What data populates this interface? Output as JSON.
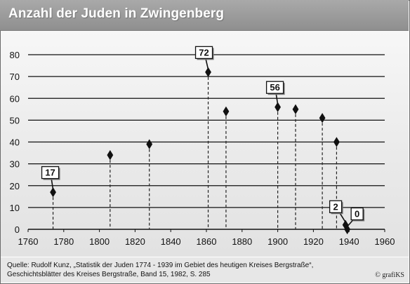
{
  "title": "Anzahl der Juden in Zwingenberg",
  "source_line1": "Quelle: Rudolf Kunz, „Statistik der Juden 1774 - 1939 im Gebiet des heutigen Kreises Bergstraße“,",
  "source_line2": "Geschichtsblätter des Kreises Bergstraße, Band 15, 1982, S. 285",
  "copyright": "© grafiKS",
  "chart_data": {
    "type": "scatter",
    "title": "Anzahl der Juden in Zwingenberg",
    "xlabel": "",
    "ylabel": "",
    "xlim": [
      1760,
      1960
    ],
    "ylim": [
      0,
      80
    ],
    "x_ticks": [
      1760,
      1780,
      1800,
      1820,
      1840,
      1860,
      1880,
      1900,
      1920,
      1940,
      1960
    ],
    "y_ticks": [
      0,
      10,
      20,
      30,
      40,
      50,
      60,
      70,
      80
    ],
    "grid": "horizontal",
    "drop_lines": true,
    "points": [
      {
        "x": 1774,
        "y": 17
      },
      {
        "x": 1806,
        "y": 34
      },
      {
        "x": 1828,
        "y": 39
      },
      {
        "x": 1861,
        "y": 72
      },
      {
        "x": 1871,
        "y": 54
      },
      {
        "x": 1900,
        "y": 56
      },
      {
        "x": 1910,
        "y": 55
      },
      {
        "x": 1925,
        "y": 51
      },
      {
        "x": 1933,
        "y": 40
      },
      {
        "x": 1938,
        "y": 2
      },
      {
        "x": 1939,
        "y": 0
      }
    ],
    "data_labels": [
      {
        "x": 1774,
        "y": 17,
        "text": "17"
      },
      {
        "x": 1861,
        "y": 72,
        "text": "72"
      },
      {
        "x": 1900,
        "y": 56,
        "text": "56"
      },
      {
        "x": 1938,
        "y": 2,
        "text": "2"
      },
      {
        "x": 1939,
        "y": 0,
        "text": "0"
      }
    ],
    "colors": {
      "marker": "#111111",
      "grid": "#111111",
      "drop_line": "#222222"
    }
  }
}
